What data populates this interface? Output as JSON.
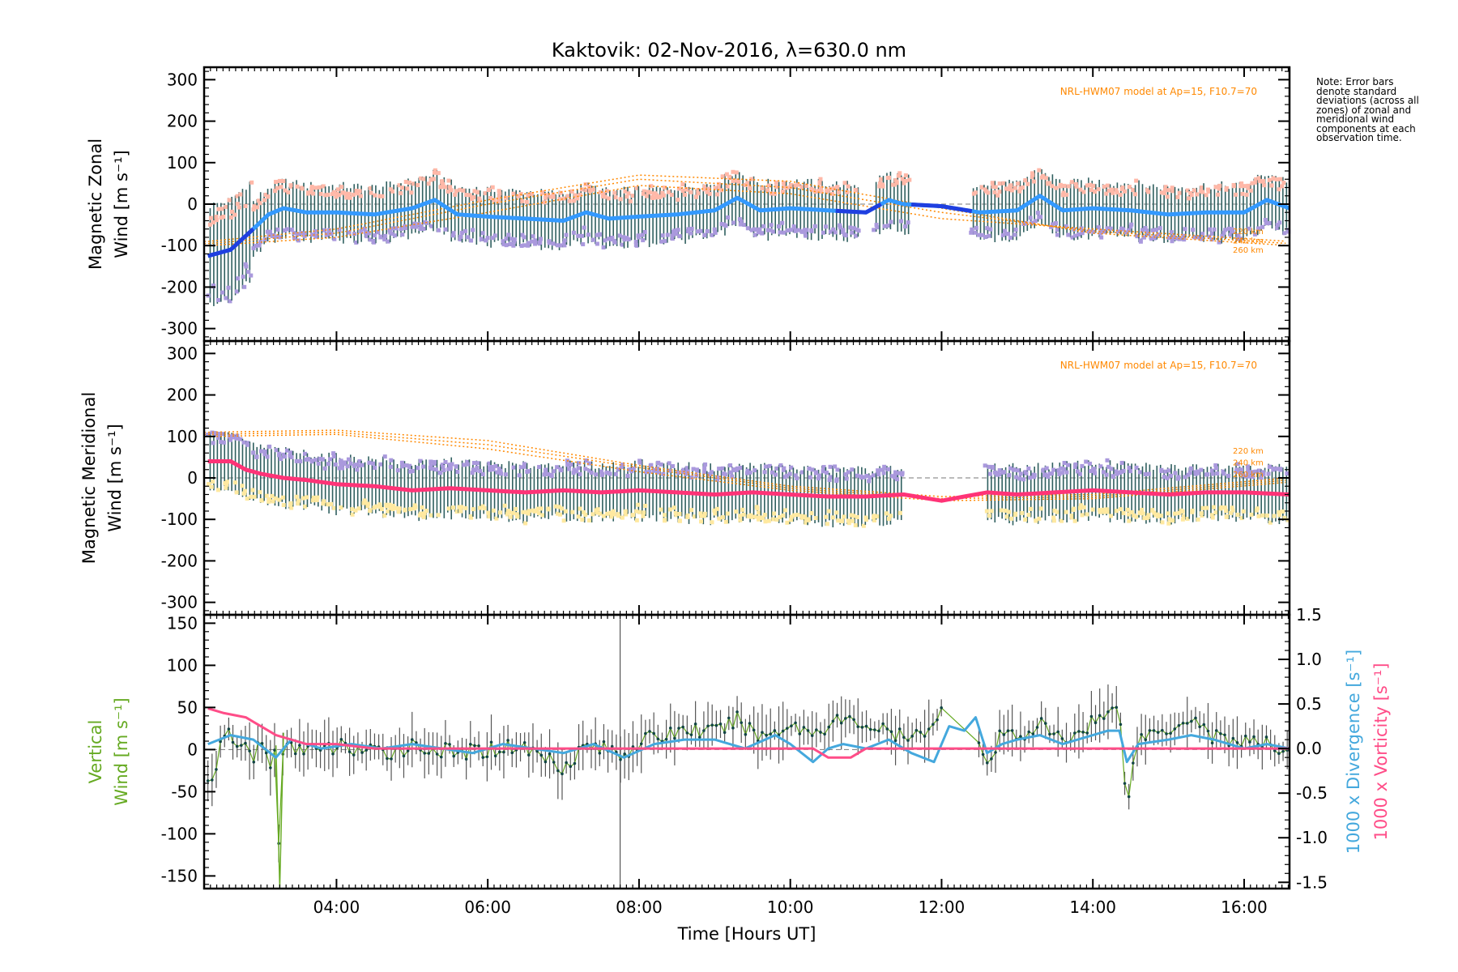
{
  "title": "Kaktovik: 02-Nov-2016, λ=630.0 nm",
  "note": "Note: Error bars denote standard deviations (across all zones) of zonal and meridional wind components at each observation time.",
  "colors": {
    "zonal_mean": "#3399ff",
    "zonal_interp": "#1f3fe0",
    "zonal_points": "#aa99dd",
    "zonal_upper": "#ffb8a8",
    "meridional_mean": "#ff3377",
    "meridional_upper": "#aa99dd",
    "meridional_lower": "#ffe9a0",
    "errorbar": "#2f5f5f",
    "model": "#ff8800",
    "vertical": "#66aa22",
    "divergence": "#44a8dd",
    "vorticity": "#ff4d88"
  },
  "chart_data": [
    {
      "type": "line",
      "panel": "zonal",
      "ylabel_lines": [
        "Magnetic Zonal",
        "Wind [m s⁻¹]"
      ],
      "ylim": [
        -330,
        330
      ],
      "yticks": [
        -300,
        -200,
        -100,
        0,
        100,
        200,
        300
      ],
      "xlim": [
        2.25,
        16.6
      ],
      "x_tick_hours": [
        4,
        6,
        8,
        10,
        12,
        14,
        16
      ],
      "annotation": "NRL-HWM07 model at Ap=15, F10.7=70",
      "model_labels": [
        "220 km",
        "240 km",
        "260 km"
      ],
      "series": [
        {
          "x": [
            2.3,
            2.6,
            2.9,
            3.1,
            3.3,
            3.6,
            4.0,
            4.5,
            5.0,
            5.3,
            5.6,
            6.0,
            6.5,
            7.0,
            7.3,
            7.6,
            8.0,
            8.5,
            9.0,
            9.3,
            9.6,
            10.0,
            10.5,
            11.0,
            11.3,
            11.5,
            12.0,
            12.5,
            13.0,
            13.3,
            13.6,
            14.0,
            14.5,
            15.0,
            15.5,
            16.0,
            16.3,
            16.6
          ],
          "y": [
            -125,
            -110,
            -60,
            -25,
            -10,
            -20,
            -20,
            -25,
            -10,
            10,
            -25,
            -30,
            -35,
            -40,
            -20,
            -35,
            -30,
            -25,
            -15,
            15,
            -15,
            -10,
            -15,
            -20,
            10,
            0,
            -5,
            -20,
            -15,
            20,
            -15,
            -10,
            -15,
            -25,
            -20,
            -20,
            10,
            -10
          ]
        }
      ],
      "model_curves": [
        {
          "x": [
            2.3,
            4.0,
            6.0,
            8.0,
            10.0,
            12.0,
            14.0,
            16.6
          ],
          "y": [
            -90,
            -60,
            10,
            70,
            55,
            -10,
            -70,
            -100
          ]
        },
        {
          "x": [
            2.3,
            4.0,
            6.0,
            8.0,
            10.0,
            12.0,
            14.0,
            16.6
          ],
          "y": [
            -95,
            -70,
            0,
            60,
            40,
            -20,
            -65,
            -95
          ]
        },
        {
          "x": [
            2.3,
            4.0,
            6.0,
            8.0,
            10.0,
            12.0,
            14.0,
            16.6
          ],
          "y": [
            -100,
            -80,
            -20,
            45,
            25,
            -35,
            -60,
            -90
          ]
        }
      ]
    },
    {
      "type": "line",
      "panel": "meridional",
      "ylabel_lines": [
        "Magnetic Meridional",
        "Wind [m s⁻¹]"
      ],
      "ylim": [
        -330,
        330
      ],
      "yticks": [
        -300,
        -200,
        -100,
        0,
        100,
        200,
        300
      ],
      "xlim": [
        2.25,
        16.6
      ],
      "x_tick_hours": [
        4,
        6,
        8,
        10,
        12,
        14,
        16
      ],
      "annotation": "NRL-HWM07 model at Ap=15, F10.7=70",
      "model_labels": [
        "220 km",
        "240 km",
        "260 km"
      ],
      "series": [
        {
          "x": [
            2.3,
            2.6,
            2.8,
            3.0,
            3.3,
            3.6,
            4.0,
            4.5,
            5.0,
            5.5,
            6.0,
            6.5,
            7.0,
            7.5,
            8.0,
            8.5,
            9.0,
            9.5,
            10.0,
            10.5,
            11.0,
            11.5,
            12.0,
            12.3,
            12.6,
            13.0,
            13.5,
            14.0,
            14.5,
            15.0,
            15.5,
            16.0,
            16.6
          ],
          "y": [
            40,
            40,
            20,
            10,
            0,
            -5,
            -15,
            -20,
            -30,
            -25,
            -30,
            -35,
            -30,
            -35,
            -30,
            -35,
            -40,
            -35,
            -40,
            -45,
            -45,
            -40,
            -55,
            -45,
            -35,
            -40,
            -35,
            -30,
            -35,
            -40,
            -35,
            -35,
            -40
          ]
        }
      ],
      "model_curves": [
        {
          "x": [
            2.3,
            4.0,
            6.0,
            8.0,
            10.0,
            12.0,
            14.0,
            16.6
          ],
          "y": [
            110,
            115,
            90,
            30,
            -20,
            -45,
            -40,
            0
          ]
        },
        {
          "x": [
            2.3,
            4.0,
            6.0,
            8.0,
            10.0,
            12.0,
            14.0,
            16.6
          ],
          "y": [
            105,
            110,
            80,
            25,
            -25,
            -50,
            -45,
            -5
          ]
        },
        {
          "x": [
            2.3,
            4.0,
            6.0,
            8.0,
            10.0,
            12.0,
            14.0,
            16.6
          ],
          "y": [
            100,
            105,
            70,
            15,
            -30,
            -55,
            -50,
            -10
          ]
        }
      ]
    },
    {
      "type": "line",
      "panel": "vertical",
      "ylabel_lines": [
        "Vertical",
        "Wind [m s⁻¹]"
      ],
      "ylabel_right_1": "1000 x Divergence [s⁻¹]",
      "ylabel_right_2": "1000 x Vorticity [s⁻¹]",
      "ylim": [
        -165,
        160
      ],
      "yticks": [
        -150,
        -100,
        -50,
        0,
        50,
        100,
        150
      ],
      "ylim_right": [
        -1.57,
        1.5
      ],
      "yticks_right": [
        -1.5,
        -1.0,
        -0.5,
        0.0,
        0.5,
        1.0,
        1.5
      ],
      "xlim": [
        2.25,
        16.6
      ],
      "x_tick_hours": [
        4,
        6,
        8,
        10,
        12,
        14,
        16
      ],
      "x_tick_labels": [
        "04:00",
        "06:00",
        "08:00",
        "10:00",
        "12:00",
        "14:00",
        "16:00"
      ],
      "xlabel": "Time [Hours UT]",
      "series": [
        {
          "name": "vertical",
          "x": [
            2.3,
            2.4,
            2.5,
            2.6,
            2.7,
            2.8,
            2.9,
            3.0,
            3.1,
            3.2,
            3.25,
            3.3,
            3.4,
            3.6,
            3.8,
            4.0,
            4.3,
            4.6,
            5.0,
            5.3,
            5.6,
            6.0,
            6.4,
            6.8,
            7.0,
            7.3,
            7.6,
            7.8,
            8.0,
            8.3,
            8.6,
            9.0,
            9.3,
            9.6,
            10.0,
            10.3,
            10.6,
            11.0,
            11.3,
            11.6,
            11.9,
            12.0,
            12.3,
            12.5,
            12.6,
            12.8,
            13.0,
            13.3,
            13.6,
            13.8,
            14.0,
            14.2,
            14.35,
            14.45,
            14.6,
            15.0,
            15.3,
            15.6,
            16.0,
            16.3,
            16.6
          ],
          "y": [
            -40,
            -20,
            10,
            20,
            0,
            5,
            -10,
            15,
            -20,
            5,
            -165,
            20,
            0,
            5,
            -5,
            5,
            0,
            -5,
            5,
            0,
            -5,
            0,
            5,
            -10,
            -20,
            5,
            0,
            -5,
            10,
            15,
            25,
            20,
            35,
            15,
            30,
            20,
            35,
            30,
            20,
            10,
            35,
            45,
            40,
            5,
            -25,
            20,
            15,
            30,
            10,
            20,
            35,
            40,
            55,
            -65,
            15,
            25,
            40,
            15,
            10,
            5,
            0
          ]
        },
        {
          "name": "divergence",
          "x": [
            2.3,
            2.6,
            2.9,
            3.2,
            3.4,
            3.8,
            4.2,
            4.6,
            5.0,
            5.4,
            5.8,
            6.2,
            6.6,
            7.0,
            7.4,
            7.8,
            8.2,
            8.6,
            9.0,
            9.4,
            9.8,
            10.0,
            10.3,
            10.5,
            10.7,
            11.0,
            11.3,
            11.6,
            11.9,
            12.1,
            12.3,
            12.45,
            12.6,
            12.8,
            13.0,
            13.3,
            13.6,
            14.0,
            14.2,
            14.35,
            14.45,
            14.6,
            15.0,
            15.3,
            15.6,
            16.0,
            16.3,
            16.6
          ],
          "y": [
            0.05,
            0.15,
            0.1,
            -0.1,
            0.1,
            0.0,
            0.05,
            0.0,
            0.05,
            0.0,
            -0.05,
            0.05,
            0.0,
            -0.05,
            0.05,
            -0.1,
            0.05,
            0.1,
            0.1,
            0.0,
            0.15,
            0.05,
            -0.15,
            0.0,
            0.05,
            0.0,
            0.1,
            -0.05,
            -0.15,
            0.25,
            0.2,
            0.35,
            -0.05,
            0.05,
            0.1,
            0.15,
            0.05,
            0.15,
            0.2,
            0.2,
            -0.15,
            0.05,
            0.1,
            0.15,
            0.1,
            0.0,
            0.05,
            0.0
          ]
        },
        {
          "name": "vorticity",
          "x": [
            2.3,
            2.5,
            2.8,
            3.0,
            3.2,
            3.4,
            3.6,
            4.0,
            4.5,
            5.0,
            5.5,
            6.0,
            6.5,
            7.0,
            7.5,
            8.0,
            8.5,
            9.0,
            9.5,
            10.0,
            10.3,
            10.5,
            10.8,
            11.0,
            11.5,
            12.0,
            12.5,
            13.0,
            13.5,
            14.0,
            14.5,
            15.0,
            15.5,
            16.0,
            16.6
          ],
          "y": [
            0.45,
            0.4,
            0.35,
            0.25,
            0.15,
            0.1,
            0.05,
            0.05,
            0.0,
            0.0,
            0.0,
            0.0,
            0.0,
            0.0,
            0.0,
            0.0,
            0.0,
            0.0,
            0.0,
            0.0,
            0.0,
            -0.1,
            -0.1,
            0.0,
            0.0,
            0.0,
            0.0,
            0.0,
            0.0,
            0.0,
            0.0,
            0.0,
            0.0,
            0.0,
            0.0
          ]
        }
      ]
    }
  ]
}
